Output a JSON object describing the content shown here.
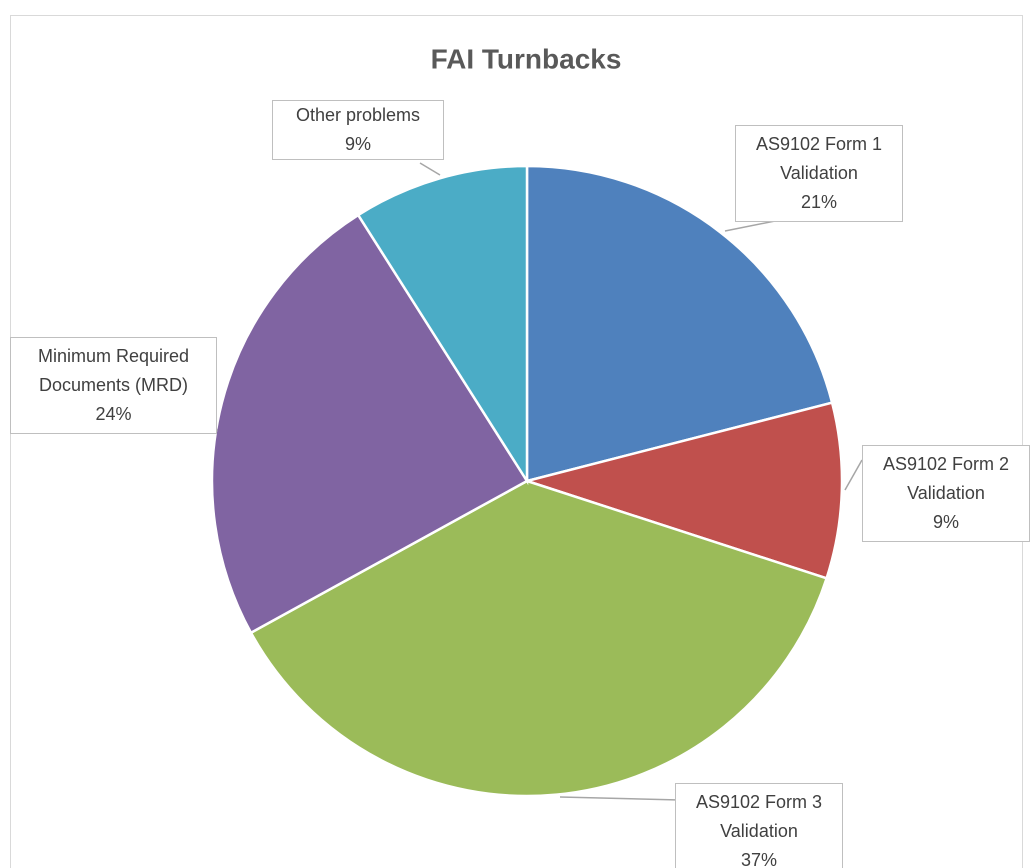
{
  "chart_data": {
    "type": "pie",
    "title": "FAI Turnbacks",
    "categories": [
      "AS9102 Form 1 Validation",
      "AS9102 Form 2 Validation",
      "AS9102 Form 3 Validation",
      "Minimum Required Documents (MRD)",
      "Other problems"
    ],
    "values": [
      21,
      9,
      37,
      24,
      9
    ],
    "value_labels": [
      "21%",
      "9%",
      "37%",
      "24%",
      "9%"
    ],
    "colors": [
      "#4f81bd",
      "#c0504d",
      "#9bbb59",
      "#8064a2",
      "#4bacc6"
    ]
  }
}
